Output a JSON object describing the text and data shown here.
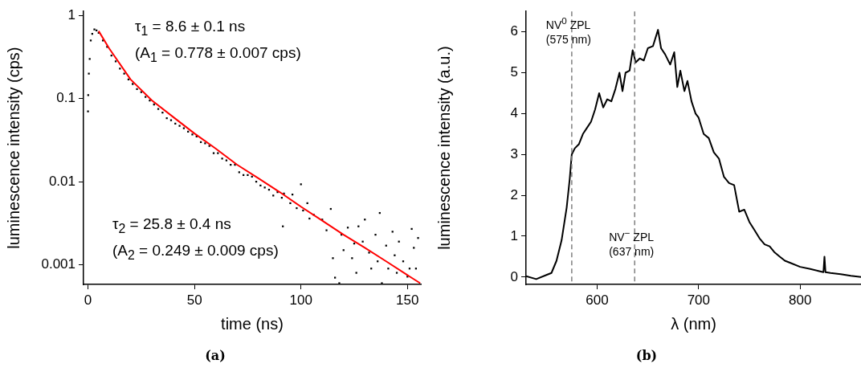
{
  "chart_data": [
    {
      "type": "scatter",
      "xlabel": "time (ns)",
      "ylabel": "luminescence intensity (cps)",
      "log": "y",
      "grid": false,
      "legend": false,
      "xlim": [
        -2.1,
        156.3
      ],
      "ylim": [
        0.00058,
        1.12
      ],
      "xticks": [
        0,
        50,
        100,
        150
      ],
      "yticks": [
        0.001,
        0.01,
        0.1,
        1
      ],
      "series": [
        {
          "color": "#000000",
          "marker": "square",
          "x": [
            0,
            0.1,
            0.4,
            0.8,
            1.3,
            2,
            3,
            4,
            5,
            7,
            9,
            11,
            13,
            15,
            17,
            19,
            21,
            23,
            25,
            27,
            29,
            31,
            33,
            35,
            37,
            39,
            41,
            43,
            45,
            47,
            49,
            51,
            53,
            55,
            57,
            59,
            61,
            63,
            65,
            67,
            69,
            71,
            73,
            75,
            77,
            79,
            81,
            83,
            85,
            87,
            89,
            91,
            91.5,
            92,
            95,
            96,
            98,
            100,
            101,
            103,
            104,
            106,
            110,
            112,
            114,
            115,
            116,
            118,
            119,
            120,
            122,
            124,
            125,
            126,
            127,
            129,
            130,
            132,
            133,
            135,
            136,
            137,
            138,
            140,
            141,
            143,
            144,
            145,
            146,
            148,
            150,
            151,
            152,
            153,
            154,
            155
          ],
          "values": [
            0.07,
            0.11,
            0.2,
            0.3,
            0.5,
            0.6,
            0.68,
            0.66,
            0.62,
            0.5,
            0.42,
            0.33,
            0.28,
            0.23,
            0.2,
            0.17,
            0.15,
            0.13,
            0.12,
            0.105,
            0.095,
            0.085,
            0.075,
            0.068,
            0.058,
            0.055,
            0.05,
            0.047,
            0.044,
            0.04,
            0.037,
            0.035,
            0.03,
            0.029,
            0.027,
            0.022,
            0.022,
            0.019,
            0.018,
            0.016,
            0.016,
            0.013,
            0.012,
            0.012,
            0.0115,
            0.01,
            0.009,
            0.0085,
            0.008,
            0.0068,
            0.0075,
            0.0064,
            0.0029,
            0.0072,
            0.0055,
            0.007,
            0.0048,
            0.0093,
            0.0045,
            0.0055,
            0.0036,
            0.004,
            0.0035,
            0.0026,
            0.0047,
            0.0012,
            0.0007,
            0.0006,
            0.0023,
            0.0015,
            0.0028,
            0.0012,
            0.0018,
            0.0008,
            0.0029,
            0.0019,
            0.0035,
            0.0014,
            0.0009,
            0.0023,
            0.0011,
            0.0042,
            0.0006,
            0.0017,
            0.0009,
            0.0025,
            0.0013,
            0.0008,
            0.0019,
            0.0011,
            0.00072,
            0.0009,
            0.0027,
            0.0016,
            0.0009,
            0.0021
          ]
        },
        {
          "type": "line",
          "color": "#ff0000",
          "marker": "none",
          "x": [
            5,
            10,
            20,
            30,
            40,
            50,
            60,
            70,
            80,
            90,
            100,
            110,
            120,
            130,
            140,
            150,
            156
          ],
          "values": [
            0.65,
            0.4,
            0.17,
            0.095,
            0.06,
            0.038,
            0.025,
            0.016,
            0.011,
            0.0075,
            0.005,
            0.0034,
            0.0023,
            0.0016,
            0.0011,
            0.00075,
            0.0006
          ]
        }
      ],
      "annotations": [
        "τ$_{1}$ = 8.6 ± 0.1 ns",
        "(A$_{1}$ = 0.778 ± 0.007 cps)",
        "τ$_{2}$ = 25.8 ± 0.4 ns",
        "(A$_{2}$ = 0.249 ± 0.009 cps)",
        "(a)"
      ]
    },
    {
      "type": "line",
      "xlabel": "λ (nm)",
      "ylabel": "luminescence intensity (a.u.)",
      "grid": false,
      "legend": false,
      "xlim": [
        530,
        860
      ],
      "ylim": [
        -0.18,
        6.5
      ],
      "xticks": [
        600,
        700,
        800
      ],
      "yticks": [
        0,
        1,
        2,
        3,
        4,
        5,
        6
      ],
      "series": [
        {
          "color": "#000000",
          "marker": "none",
          "x": [
            530,
            540,
            550,
            555,
            560,
            565,
            570,
            573,
            575,
            578,
            582,
            586,
            590,
            594,
            598,
            602,
            606,
            610,
            614,
            618,
            622,
            625,
            628,
            632,
            635,
            638,
            642,
            646,
            650,
            655,
            660,
            663,
            667,
            672,
            676,
            679,
            682,
            686,
            689,
            693,
            697,
            700,
            705,
            710,
            715,
            720,
            725,
            730,
            735,
            740,
            745,
            750,
            755,
            760,
            765,
            770,
            775,
            780,
            785,
            790,
            800,
            810,
            818,
            823,
            824,
            825,
            830,
            840,
            850,
            860
          ],
          "values": [
            0.02,
            -0.05,
            0.05,
            0.1,
            0.4,
            0.9,
            1.7,
            2.4,
            3.0,
            3.15,
            3.25,
            3.5,
            3.65,
            3.8,
            4.1,
            4.5,
            4.15,
            4.35,
            4.3,
            4.6,
            5.0,
            4.55,
            5.0,
            5.05,
            5.55,
            5.25,
            5.35,
            5.3,
            5.6,
            5.65,
            6.05,
            5.6,
            5.45,
            5.2,
            5.5,
            4.65,
            5.05,
            4.55,
            4.8,
            4.3,
            4.0,
            3.9,
            3.5,
            3.4,
            3.05,
            2.9,
            2.45,
            2.3,
            2.25,
            1.6,
            1.65,
            1.35,
            1.15,
            0.95,
            0.8,
            0.75,
            0.6,
            0.5,
            0.4,
            0.35,
            0.25,
            0.2,
            0.15,
            0.12,
            0.5,
            0.12,
            0.1,
            0.07,
            0.03,
            0.0
          ]
        }
      ],
      "ref_lines": [
        {
          "axis": "x",
          "value": 575,
          "label": "NV$^{0}$ ZPL\n(575 nm)",
          "color": "#808080",
          "line_style": "dashed"
        },
        {
          "axis": "x",
          "value": 637,
          "label": "NV$^{−}$ ZPL\n(637 nm)",
          "color": "#808080",
          "line_style": "dashed"
        }
      ],
      "annotations": [
        "(b)"
      ]
    }
  ]
}
